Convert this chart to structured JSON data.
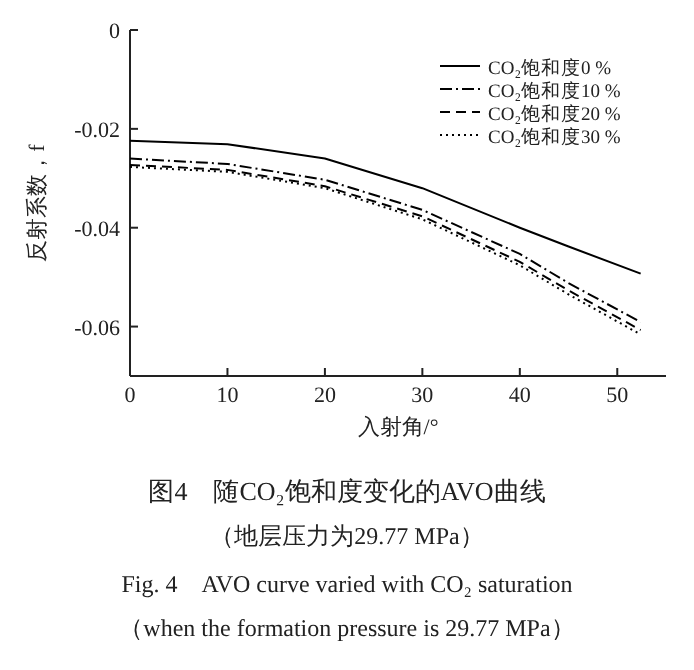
{
  "chart_data": {
    "type": "line",
    "title": "图4　随CO₂饱和度变化的AVO曲线",
    "subtitle": "（地层压力为29.77 MPa）",
    "xlabel": "入射角/°",
    "ylabel": "反射系数，f",
    "annotations": [
      "Fig. 4　AVO curve varied with CO₂ saturation",
      "（when the formation pressure is 29.77 MPa）"
    ],
    "x": [
      0,
      10,
      20,
      30,
      40,
      45,
      52.4
    ],
    "series": [
      {
        "name": "CO₂饱和度0 %",
        "color": "#000000",
        "line_style": "solid",
        "values": [
          -0.0224,
          -0.0231,
          -0.026,
          -0.032,
          -0.04,
          -0.0438,
          -0.0493
        ]
      },
      {
        "name": "CO₂饱和度10 %",
        "color": "#000000",
        "line_style": "dashdot",
        "values": [
          -0.026,
          -0.0271,
          -0.0303,
          -0.0364,
          -0.0453,
          -0.0512,
          -0.0591
        ]
      },
      {
        "name": "CO₂饱和度20 %",
        "color": "#000000",
        "line_style": "dashed",
        "values": [
          -0.0273,
          -0.0283,
          -0.0316,
          -0.0377,
          -0.0469,
          -0.0527,
          -0.0607
        ]
      },
      {
        "name": "CO₂饱和度30 %",
        "color": "#000000",
        "line_style": "dotted",
        "values": [
          -0.0277,
          -0.0287,
          -0.032,
          -0.0383,
          -0.0476,
          -0.0535,
          -0.0616
        ]
      }
    ],
    "xlim": [
      0,
      55
    ],
    "ylim": [
      -0.07,
      0
    ],
    "xticks": [
      0,
      10,
      20,
      30,
      40,
      50
    ],
    "yticks": [
      -0.06,
      -0.04,
      -0.02,
      0
    ],
    "grid": false,
    "legend": "top right",
    "marker": "none"
  }
}
